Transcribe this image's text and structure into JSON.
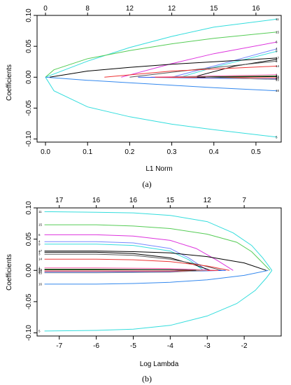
{
  "chart_data": [
    {
      "type": "line",
      "panel_caption": "(a)",
      "xlabel": "L1 Norm",
      "ylabel": "Coefficients",
      "xlim": [
        -0.02,
        0.56
      ],
      "ylim": [
        -0.105,
        0.1
      ],
      "x_ticks": [
        "0.0",
        "0.1",
        "0.2",
        "0.3",
        "0.4",
        "0.5"
      ],
      "x_tick_values": [
        0.0,
        0.1,
        0.2,
        0.3,
        0.4,
        0.5
      ],
      "y_ticks": [
        "-0.10",
        "-0.05",
        "0.00",
        "0.05",
        "0.10"
      ],
      "y_tick_values": [
        -0.1,
        -0.05,
        0.0,
        0.05,
        0.1
      ],
      "top_axis_ticks": [
        "0",
        "8",
        "12",
        "12",
        "15",
        "16"
      ],
      "top_axis_positions": [
        0.0,
        0.1,
        0.2,
        0.3,
        0.4,
        0.5
      ],
      "grid": false,
      "series": [
        {
          "name": "11",
          "color": "#33dddd",
          "x": [
            0.0,
            0.1,
            0.2,
            0.3,
            0.4,
            0.55
          ],
          "y": [
            0.0,
            0.026,
            0.048,
            0.066,
            0.081,
            0.094
          ]
        },
        {
          "name": "15",
          "color": "#55cc55",
          "x": [
            0.0,
            0.02,
            0.1,
            0.2,
            0.3,
            0.4,
            0.55
          ],
          "y": [
            0.0,
            0.012,
            0.03,
            0.043,
            0.054,
            0.063,
            0.073
          ]
        },
        {
          "name": "6",
          "color": "#dd33dd",
          "x": [
            0.18,
            0.3,
            0.4,
            0.55
          ],
          "y": [
            0.0,
            0.022,
            0.038,
            0.057
          ]
        },
        {
          "name": "5",
          "color": "#33dddd",
          "x": [
            0.0,
            0.02,
            0.1,
            0.2,
            0.3,
            0.4,
            0.55
          ],
          "y": [
            0.0,
            -0.022,
            -0.048,
            -0.064,
            -0.076,
            -0.085,
            -0.097
          ]
        },
        {
          "name": "16",
          "color": "#3388ee",
          "x": [
            0.0,
            0.1,
            0.2,
            0.3,
            0.4,
            0.55
          ],
          "y": [
            0.0,
            -0.005,
            -0.009,
            -0.013,
            -0.017,
            -0.022
          ]
        },
        {
          "name": "4",
          "color": "#7788ff",
          "x": [
            0.3,
            0.4,
            0.55
          ],
          "y": [
            0.0,
            0.018,
            0.046
          ]
        },
        {
          "name": "9",
          "color": "#33dddd",
          "x": [
            0.32,
            0.4,
            0.55
          ],
          "y": [
            0.0,
            0.016,
            0.042
          ]
        },
        {
          "name": "17",
          "color": "#000000",
          "x": [
            0.01,
            0.1,
            0.2,
            0.3,
            0.4,
            0.55
          ],
          "y": [
            0.0,
            0.01,
            0.016,
            0.021,
            0.025,
            0.031
          ]
        },
        {
          "name": "7",
          "color": "#000000",
          "x": [
            0.35,
            0.45,
            0.55
          ],
          "y": [
            0.0,
            0.018,
            0.029
          ]
        },
        {
          "name": "3",
          "color": "#555555",
          "x": [
            0.2,
            0.35,
            0.55
          ],
          "y": [
            0.0,
            0.012,
            0.026
          ]
        },
        {
          "name": "14",
          "color": "#ee3333",
          "x": [
            0.14,
            0.3,
            0.55
          ],
          "y": [
            0.0,
            0.01,
            0.018
          ]
        },
        {
          "name": "1",
          "color": "#ff55aa",
          "x": [
            0.25,
            0.55
          ],
          "y": [
            0.0,
            0.004
          ]
        },
        {
          "name": "2",
          "color": "#33aa33",
          "x": [
            0.3,
            0.55
          ],
          "y": [
            0.0,
            0.002
          ]
        },
        {
          "name": "8",
          "color": "#2255ee",
          "x": [
            0.22,
            0.55
          ],
          "y": [
            0.0,
            -0.003
          ]
        },
        {
          "name": "10",
          "color": "#ff3333",
          "x": [
            0.26,
            0.55
          ],
          "y": [
            0.0,
            -0.001
          ]
        },
        {
          "name": "12",
          "color": "#000000",
          "x": [
            0.36,
            0.55
          ],
          "y": [
            0.0,
            0.001
          ]
        },
        {
          "name": "13",
          "color": "#999999",
          "x": [
            0.38,
            0.55
          ],
          "y": [
            0.0,
            -0.004
          ]
        }
      ]
    },
    {
      "type": "line",
      "panel_caption": "(b)",
      "xlabel": "Log Lambda",
      "ylabel": "Coefficients",
      "xlim": [
        -7.6,
        -1.0
      ],
      "ylim": [
        -0.105,
        0.1
      ],
      "x_ticks": [
        "-7",
        "-6",
        "-5",
        "-4",
        "-3",
        "-2"
      ],
      "x_tick_values": [
        -7,
        -6,
        -5,
        -4,
        -3,
        -2
      ],
      "y_ticks": [
        "-0.10",
        "-0.05",
        "0.00",
        "0.05",
        "0.10"
      ],
      "y_tick_values": [
        -0.1,
        -0.05,
        0.0,
        0.05,
        0.1
      ],
      "top_axis_ticks": [
        "17",
        "16",
        "16",
        "15",
        "12",
        "7"
      ],
      "top_axis_positions": [
        -7,
        -6,
        -5,
        -4,
        -3,
        -2
      ],
      "grid": false,
      "series": [
        {
          "name": "11",
          "color": "#33dddd",
          "x": [
            -7.4,
            -6,
            -5,
            -4,
            -3,
            -2.3,
            -1.8,
            -1.5,
            -1.25
          ],
          "y": [
            0.094,
            0.093,
            0.092,
            0.088,
            0.078,
            0.06,
            0.04,
            0.02,
            0.0
          ]
        },
        {
          "name": "15",
          "color": "#55cc55",
          "x": [
            -7.4,
            -6,
            -5,
            -4,
            -3,
            -2.2,
            -1.8,
            -1.3
          ],
          "y": [
            0.073,
            0.073,
            0.071,
            0.067,
            0.058,
            0.045,
            0.03,
            0.0
          ]
        },
        {
          "name": "6",
          "color": "#dd33dd",
          "x": [
            -7.4,
            -6,
            -5,
            -4,
            -3.3,
            -2.7,
            -2.3
          ],
          "y": [
            0.057,
            0.057,
            0.055,
            0.048,
            0.035,
            0.015,
            0.0
          ]
        },
        {
          "name": "4",
          "color": "#7788ff",
          "x": [
            -7.4,
            -6,
            -5,
            -4,
            -3.5,
            -3.0
          ],
          "y": [
            0.046,
            0.046,
            0.044,
            0.035,
            0.02,
            0.0
          ]
        },
        {
          "name": "9",
          "color": "#33dddd",
          "x": [
            -7.4,
            -6,
            -5,
            -4,
            -3.5,
            -3.1
          ],
          "y": [
            0.042,
            0.042,
            0.04,
            0.031,
            0.017,
            0.0
          ]
        },
        {
          "name": "17",
          "color": "#000000",
          "x": [
            -7.4,
            -6,
            -5,
            -4,
            -3,
            -2,
            -1.4
          ],
          "y": [
            0.031,
            0.031,
            0.03,
            0.028,
            0.022,
            0.012,
            0.0
          ]
        },
        {
          "name": "7",
          "color": "#000000",
          "x": [
            -7.4,
            -6,
            -5,
            -4,
            -3.4,
            -2.9
          ],
          "y": [
            0.029,
            0.029,
            0.027,
            0.02,
            0.01,
            0.0
          ]
        },
        {
          "name": "3",
          "color": "#555555",
          "x": [
            -7.4,
            -6,
            -5,
            -4,
            -3.2,
            -2.6
          ],
          "y": [
            0.026,
            0.026,
            0.024,
            0.018,
            0.009,
            0.0
          ]
        },
        {
          "name": "14",
          "color": "#ee3333",
          "x": [
            -7.4,
            -6,
            -5,
            -4,
            -3,
            -2.4
          ],
          "y": [
            0.018,
            0.018,
            0.017,
            0.014,
            0.007,
            0.0
          ]
        },
        {
          "name": "1",
          "color": "#ff55aa",
          "x": [
            -7.4,
            -6,
            -4,
            -2.8
          ],
          "y": [
            0.004,
            0.004,
            0.003,
            0.0
          ]
        },
        {
          "name": "2",
          "color": "#33aa33",
          "x": [
            -7.4,
            -6,
            -4,
            -3.2
          ],
          "y": [
            0.002,
            0.002,
            0.001,
            0.0
          ]
        },
        {
          "name": "8",
          "color": "#2255ee",
          "x": [
            -7.4,
            -6,
            -4,
            -2.5
          ],
          "y": [
            -0.003,
            -0.003,
            -0.002,
            0.0
          ]
        },
        {
          "name": "10",
          "color": "#ff3333",
          "x": [
            -7.4,
            -6,
            -4,
            -2.7
          ],
          "y": [
            -0.001,
            -0.001,
            -0.001,
            0.0
          ]
        },
        {
          "name": "12",
          "color": "#000000",
          "x": [
            -7.4,
            -6,
            -4,
            -3.3
          ],
          "y": [
            0.001,
            0.001,
            0.001,
            0.0
          ]
        },
        {
          "name": "13",
          "color": "#999999",
          "x": [
            -7.4,
            -6,
            -4,
            -3.0
          ],
          "y": [
            -0.004,
            -0.004,
            -0.003,
            0.0
          ]
        },
        {
          "name": "16",
          "color": "#3388ee",
          "x": [
            -7.4,
            -6,
            -5,
            -4,
            -3,
            -2,
            -1.35
          ],
          "y": [
            -0.022,
            -0.022,
            -0.021,
            -0.019,
            -0.015,
            -0.008,
            0.0
          ]
        },
        {
          "name": "5",
          "color": "#33dddd",
          "x": [
            -7.4,
            -6,
            -5,
            -4,
            -3,
            -2.2,
            -1.7,
            -1.4,
            -1.25
          ],
          "y": [
            -0.097,
            -0.096,
            -0.094,
            -0.088,
            -0.073,
            -0.053,
            -0.032,
            -0.012,
            0.0
          ]
        }
      ]
    }
  ]
}
